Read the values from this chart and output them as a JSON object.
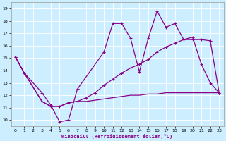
{
  "xlabel": "Windchill (Refroidissement éolien,°C)",
  "bg_color": "#cceeff",
  "line_color": "#880088",
  "grid_color": "#ffffff",
  "xlim": [
    -0.5,
    23.5
  ],
  "ylim": [
    9.5,
    19.5
  ],
  "xticks": [
    0,
    1,
    2,
    3,
    4,
    5,
    6,
    7,
    8,
    9,
    10,
    11,
    12,
    13,
    14,
    15,
    16,
    17,
    18,
    19,
    20,
    21,
    22,
    23
  ],
  "yticks": [
    10,
    11,
    12,
    13,
    14,
    15,
    16,
    17,
    18,
    19
  ],
  "line1_x": [
    0,
    1,
    3,
    4,
    5,
    6,
    7,
    10,
    11,
    12,
    13,
    14,
    15,
    16,
    17,
    18,
    19,
    20,
    21,
    22,
    23
  ],
  "line1_y": [
    15.1,
    13.8,
    12.2,
    11.2,
    9.85,
    10.0,
    12.5,
    15.5,
    17.8,
    17.8,
    16.6,
    13.9,
    16.6,
    18.8,
    17.5,
    17.8,
    16.5,
    16.7,
    14.5,
    13.0,
    12.2
  ],
  "line2_x": [
    0,
    1,
    3,
    4,
    5,
    6,
    7,
    8,
    9,
    10,
    11,
    12,
    13,
    14,
    15,
    16,
    17,
    18,
    19,
    20,
    21,
    22,
    23
  ],
  "line2_y": [
    15.1,
    13.8,
    11.5,
    11.1,
    11.1,
    11.4,
    11.5,
    11.8,
    12.2,
    12.8,
    13.3,
    13.8,
    14.2,
    14.5,
    14.9,
    15.5,
    15.9,
    16.2,
    16.5,
    16.5,
    16.5,
    16.4,
    12.2
  ],
  "line3_x": [
    0,
    1,
    3,
    4,
    5,
    6,
    7,
    8,
    9,
    10,
    11,
    12,
    13,
    14,
    15,
    16,
    17,
    18,
    19,
    20,
    21,
    22,
    23
  ],
  "line3_y": [
    15.1,
    13.8,
    11.5,
    11.1,
    11.1,
    11.4,
    11.5,
    11.5,
    11.6,
    11.7,
    11.8,
    11.9,
    12.0,
    12.0,
    12.1,
    12.1,
    12.2,
    12.2,
    12.2,
    12.2,
    12.2,
    12.2,
    12.2
  ]
}
